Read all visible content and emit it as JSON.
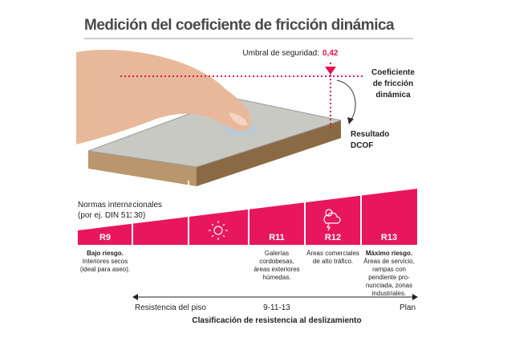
{
  "title": "Medición del coeficiente de fricción dinámica",
  "threshold": {
    "label": "Umbral de seguridad:",
    "value": "0,42"
  },
  "callouts": [
    {
      "lines": [
        "Coeficiente",
        "de fricción",
        "dinámica"
      ]
    },
    {
      "lines": [
        "Resultado",
        "DCOF"
      ]
    }
  ],
  "scale": {
    "heading": [
      "Normas internacionales",
      "(por ej. DIN 51130)"
    ],
    "segments": [
      {
        "label": "R9",
        "lead": "Bajo riesgo.",
        "lines": [
          "Interiores secos",
          "(ideal para aseo)."
        ]
      },
      {
        "label": null,
        "lead": null,
        "lines": []
      },
      {
        "label": null,
        "lead": null,
        "lines": []
      },
      {
        "label": "R11",
        "lead": null,
        "lines": [
          "Galerías",
          "cordobesas,",
          "áreas exteriores",
          "húmedas."
        ]
      },
      {
        "label": "R12",
        "lead": null,
        "lines": [
          "Áreas comerciales",
          "de alto tráfico."
        ]
      },
      {
        "label": "R13",
        "lead": "Máximo riesgo.",
        "lines": [
          "Áreas de servicio,",
          "rampas con",
          "pendiente pro-",
          "nunciada, zonas",
          "industriales."
        ]
      }
    ],
    "axis": {
      "left": "Resistencia del piso",
      "middle": "9-11-13",
      "right": "Plan"
    },
    "caption": "Clasificación de resistencia al deslizamiento"
  }
}
